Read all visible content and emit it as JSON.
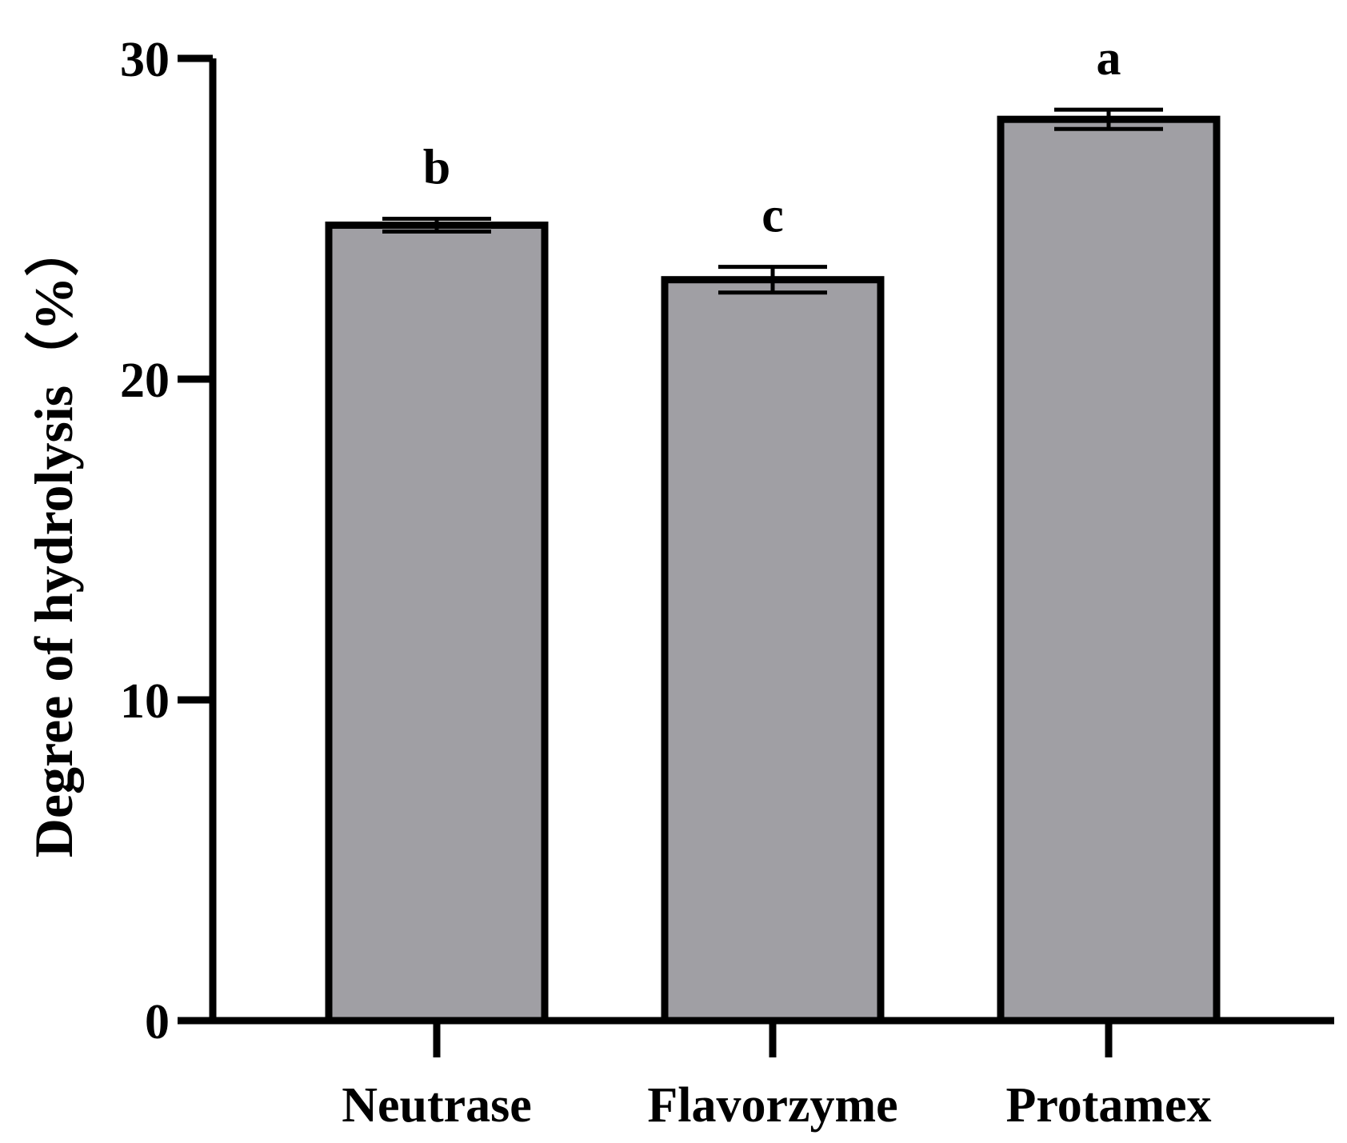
{
  "chart_data": {
    "type": "bar",
    "title": "",
    "xlabel": "",
    "ylabel": "Degree of hydrolysis（%）",
    "categories": [
      "Neutrase",
      "Flavorzyme",
      "Protamex"
    ],
    "values": [
      24.8,
      23.1,
      28.1
    ],
    "errors": [
      0.2,
      0.4,
      0.3
    ],
    "significance_letters": [
      "b",
      "c",
      "a"
    ],
    "ylim": [
      0,
      30
    ],
    "yticks": [
      0,
      10,
      20,
      30
    ],
    "grid": false,
    "legend": "none",
    "colors": {
      "bar_fill": "#a09fa4",
      "bar_edge": "#000000",
      "axis": "#000000"
    }
  }
}
